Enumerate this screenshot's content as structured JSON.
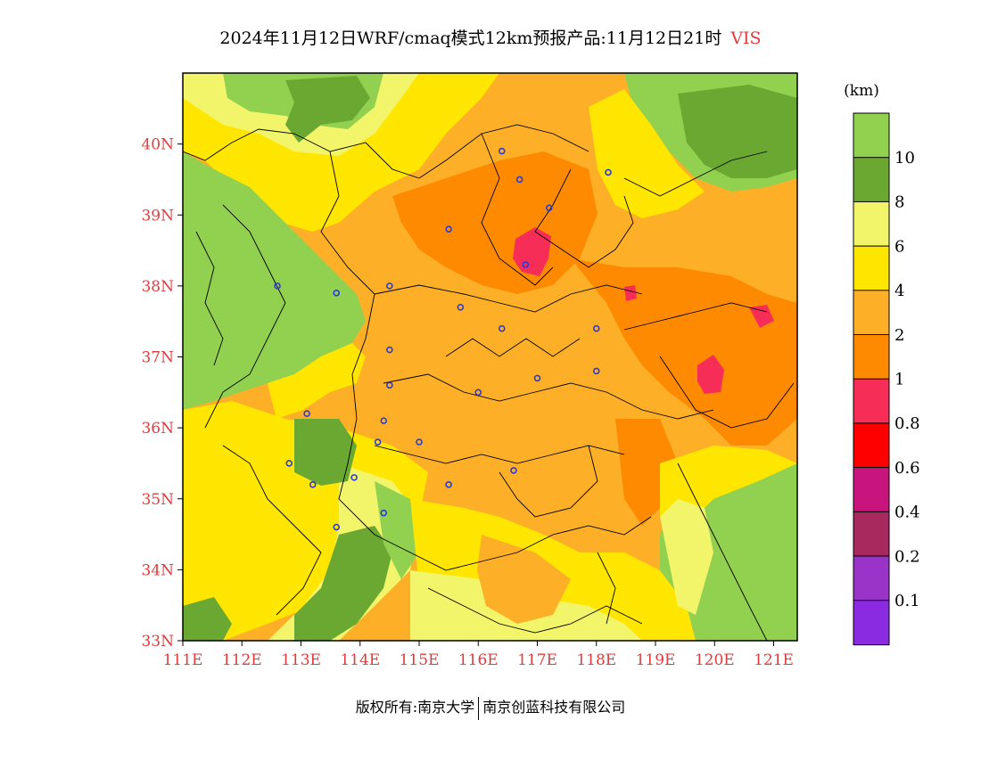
{
  "title": {
    "text": "2024年11月12日WRF/cmaq模式12km预报产品:11月12日21时",
    "variable": "VIS"
  },
  "map": {
    "lon_range": [
      111,
      121.4
    ],
    "lat_range": [
      33,
      41
    ],
    "lon_ticks": [
      "111E",
      "112E",
      "113E",
      "114E",
      "115E",
      "116E",
      "117E",
      "118E",
      "119E",
      "120E",
      "121E"
    ],
    "lat_ticks": [
      "33N",
      "34N",
      "35N",
      "36N",
      "37N",
      "38N",
      "39N",
      "40N"
    ],
    "axis_label_color": "#e23b3b",
    "station_color": "#2b3bd6",
    "stations": [
      {
        "lon": 116.4,
        "lat": 39.9
      },
      {
        "lon": 116.7,
        "lat": 39.5
      },
      {
        "lon": 117.2,
        "lat": 39.1
      },
      {
        "lon": 118.2,
        "lat": 39.6
      },
      {
        "lon": 115.5,
        "lat": 38.8
      },
      {
        "lon": 116.8,
        "lat": 38.3
      },
      {
        "lon": 112.6,
        "lat": 38.0
      },
      {
        "lon": 113.6,
        "lat": 37.9
      },
      {
        "lon": 114.5,
        "lat": 38.0
      },
      {
        "lon": 115.7,
        "lat": 37.7
      },
      {
        "lon": 116.4,
        "lat": 37.4
      },
      {
        "lon": 118.0,
        "lat": 37.4
      },
      {
        "lon": 114.5,
        "lat": 37.1
      },
      {
        "lon": 118.0,
        "lat": 36.8
      },
      {
        "lon": 117.0,
        "lat": 36.7
      },
      {
        "lon": 114.5,
        "lat": 36.6
      },
      {
        "lon": 116.0,
        "lat": 36.5
      },
      {
        "lon": 113.1,
        "lat": 36.2
      },
      {
        "lon": 114.4,
        "lat": 36.1
      },
      {
        "lon": 114.3,
        "lat": 35.8
      },
      {
        "lon": 115.0,
        "lat": 35.8
      },
      {
        "lon": 112.8,
        "lat": 35.5
      },
      {
        "lon": 116.6,
        "lat": 35.4
      },
      {
        "lon": 113.9,
        "lat": 35.3
      },
      {
        "lon": 113.2,
        "lat": 35.2
      },
      {
        "lon": 115.5,
        "lat": 35.2
      },
      {
        "lon": 114.4,
        "lat": 34.8
      },
      {
        "lon": 113.6,
        "lat": 34.6
      }
    ]
  },
  "colorbar": {
    "unit": "(km)",
    "bins": [
      {
        "color": "#92d050",
        "label": "10"
      },
      {
        "color": "#6aa832",
        "label": "8"
      },
      {
        "color": "#f2f56a",
        "label": "6"
      },
      {
        "color": "#ffe600",
        "label": "4"
      },
      {
        "color": "#fdb027",
        "label": "2"
      },
      {
        "color": "#fd8a00",
        "label": "1"
      },
      {
        "color": "#f62d57",
        "label": "0.8"
      },
      {
        "color": "#ff0000",
        "label": "0.6"
      },
      {
        "color": "#c8157d",
        "label": "0.4"
      },
      {
        "color": "#a8295e",
        "label": "0.2"
      },
      {
        "color": "#9a33c8",
        "label": "0.1"
      },
      {
        "color": "#8a2be2",
        "label": ""
      }
    ]
  },
  "copyright": {
    "left": "版权所有:南京大学",
    "right": "南京创蓝科技有限公司"
  }
}
